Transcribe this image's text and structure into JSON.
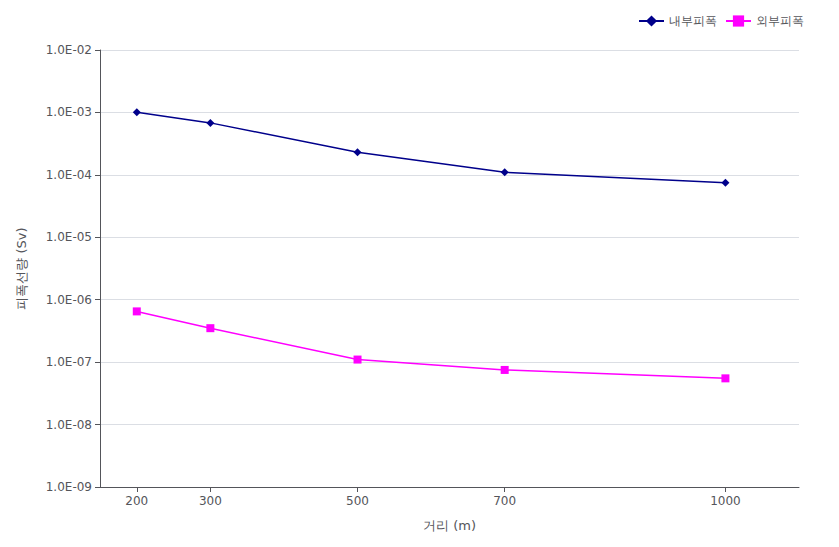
{
  "chart_data": {
    "type": "line",
    "xlabel": "거리 (m)",
    "ylabel": "피폭선량 (Sv)",
    "x": [
      200,
      300,
      500,
      700,
      1000
    ],
    "series": [
      {
        "name": "내부피폭",
        "color": "#00008B",
        "marker": "diamond",
        "values": [
          0.00101,
          0.00068,
          0.00023,
          0.00011,
          7.5e-05
        ]
      },
      {
        "name": "외부피폭",
        "color": "#FF00FF",
        "marker": "square",
        "values": [
          6.5e-07,
          3.5e-07,
          1.1e-07,
          7.5e-08,
          5.5e-08
        ]
      }
    ],
    "xlim": [
      150,
      1100
    ],
    "xticks": [
      200,
      300,
      500,
      700,
      1000
    ],
    "ylim": [
      1e-09,
      0.01
    ],
    "yticks": [
      {
        "value": 1e-09,
        "label": "1.0E-09"
      },
      {
        "value": 1e-08,
        "label": "1.0E-08"
      },
      {
        "value": 1e-07,
        "label": "1.0E-07"
      },
      {
        "value": 1e-06,
        "label": "1.0E-06"
      },
      {
        "value": 1e-05,
        "label": "1.0E-05"
      },
      {
        "value": 0.0001,
        "label": "1.0E-04"
      },
      {
        "value": 0.001,
        "label": "1.0E-03"
      },
      {
        "value": 0.01,
        "label": "1.0E-02"
      }
    ],
    "log": "y",
    "grid": "y",
    "legend": "upper right"
  }
}
